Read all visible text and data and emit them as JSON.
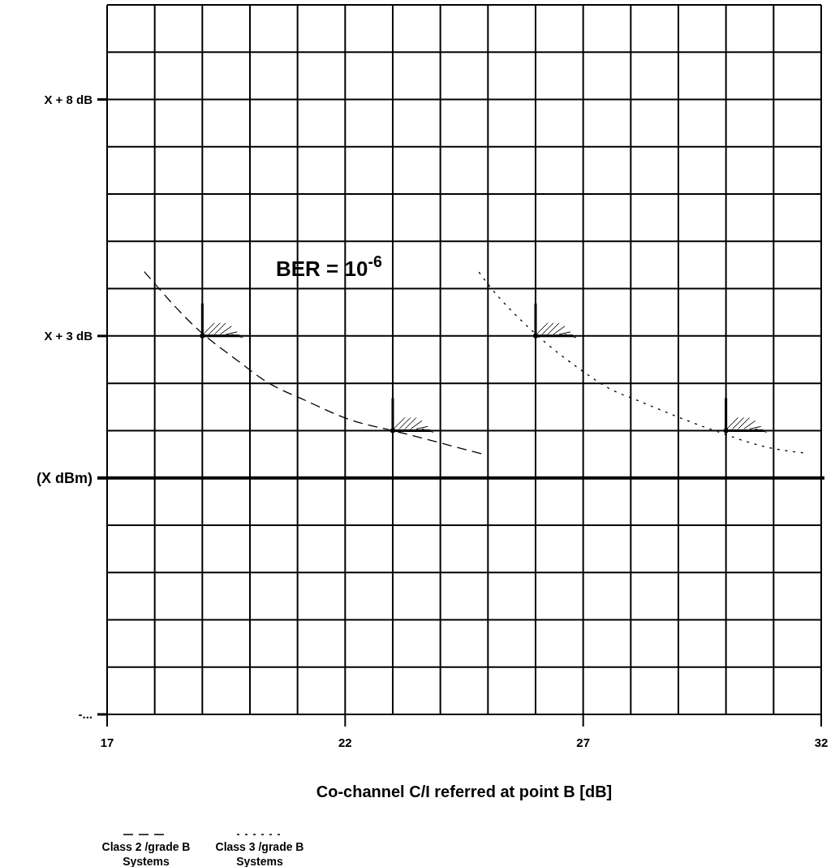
{
  "chart_data": {
    "type": "line",
    "xlabel": "Co-channel C/I referred at point B [dB]",
    "xlim": [
      17,
      32
    ],
    "xticks": [
      17,
      22,
      27,
      32
    ],
    "ylim": [
      -5,
      10
    ],
    "yticks": [
      {
        "value": 8,
        "label": "X + 8 dB"
      },
      {
        "value": 3,
        "label": "X + 3 dB"
      },
      {
        "value": 0,
        "label": "(X dBm)"
      },
      {
        "value": -5,
        "label": "-..."
      }
    ],
    "grid": true,
    "legend": "bottom",
    "annotations": [
      "BER = 10$^{-6}$"
    ],
    "ref_lines": [
      {
        "axis": "y",
        "value": 0,
        "color": "#000000"
      }
    ],
    "series": [
      {
        "name": "Class 2 /grade B Systems",
        "color": "#000000",
        "line_style": "dashed",
        "x": [
          17.78,
          18.96,
          19.74,
          20.32,
          21.18,
          22.13,
          23.0,
          24.86
        ],
        "values": [
          4.36,
          3.09,
          2.48,
          2.05,
          1.63,
          1.22,
          1.0,
          0.51
        ]
      },
      {
        "name": "Class 3 /grade B Systems",
        "color": "#000000",
        "line_style": "dotted",
        "x": [
          24.81,
          25.03,
          25.95,
          26.97,
          27.53,
          28.16,
          29.7,
          30.94,
          31.62
        ],
        "values": [
          4.35,
          4.06,
          3.09,
          2.27,
          1.9,
          1.63,
          1.02,
          0.63,
          0.53
        ]
      },
      {
        "type": "scatter",
        "color": "#000000",
        "x": [
          19,
          23
        ],
        "values": [
          3,
          1
        ]
      },
      {
        "type": "scatter",
        "color": "#000000",
        "x": [
          26,
          30
        ],
        "values": [
          3,
          1
        ]
      }
    ]
  }
}
